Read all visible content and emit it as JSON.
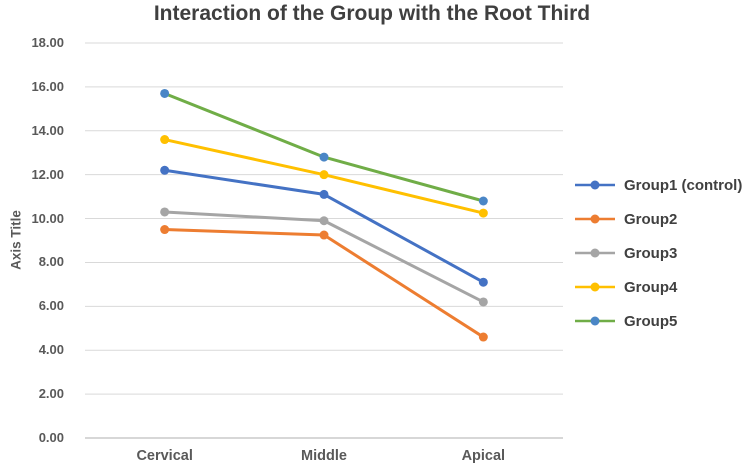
{
  "chart_data": {
    "type": "line",
    "title": "Interaction of the Group with the Root Third",
    "ylabel": "Axis Title",
    "xlabel": "",
    "categories": [
      "Cervical",
      "Middle",
      "Apical"
    ],
    "series": [
      {
        "name": "Group1 (control)",
        "color": "#4472C4",
        "marker_color": "#4472C4",
        "values": [
          12.2,
          11.1,
          7.1
        ]
      },
      {
        "name": "Group2",
        "color": "#ED7D31",
        "marker_color": "#ED7D31",
        "values": [
          9.5,
          9.25,
          4.6
        ]
      },
      {
        "name": "Group3",
        "color": "#A5A5A5",
        "marker_color": "#A5A5A5",
        "values": [
          10.3,
          9.9,
          6.2
        ]
      },
      {
        "name": "Group4",
        "color": "#FFC000",
        "marker_color": "#FFC000",
        "values": [
          13.6,
          12.0,
          10.25
        ]
      },
      {
        "name": "Group5",
        "color": "#70AD47",
        "marker_color": "#4A86C6",
        "values": [
          15.7,
          12.8,
          10.8
        ]
      }
    ],
    "ylim": [
      0,
      18
    ],
    "ytick_step": 2,
    "ytick_labels": [
      "0.00",
      "2.00",
      "4.00",
      "6.00",
      "8.00",
      "10.00",
      "12.00",
      "14.00",
      "16.00",
      "18.00"
    ],
    "grid": true,
    "legend_position": "right"
  },
  "colors": {
    "background": "#FFFFFF",
    "gridline": "#D9D9D9",
    "axis_line": "#BFBFBF",
    "title_text": "#3F3F3F",
    "axis_text": "#595959",
    "legend_text": "#404040"
  }
}
